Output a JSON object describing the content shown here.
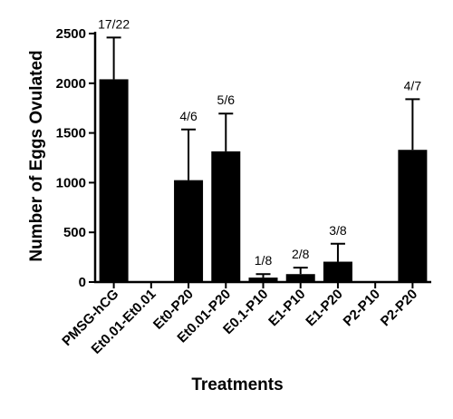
{
  "chart_data": {
    "type": "bar",
    "title": "",
    "xlabel": "Treatments",
    "ylabel": "Number of Eggs Ovulated",
    "ylim": [
      0,
      2500
    ],
    "yticks": [
      0,
      500,
      1000,
      1500,
      2000,
      2500
    ],
    "grid": false,
    "categories": [
      "PMSG-hCG",
      "Et0.01-Et0.01",
      "Et0-P20",
      "Et0.01-P20",
      "E0.1-P10",
      "E1-P10",
      "E1-P20",
      "P2-P10",
      "P2-P20"
    ],
    "values": [
      2040,
      0,
      1025,
      1315,
      45,
      80,
      205,
      0,
      1330
    ],
    "errors": [
      420,
      0,
      510,
      380,
      35,
      65,
      180,
      0,
      510
    ],
    "annotations": [
      "17/22",
      "",
      "4/6",
      "5/6",
      "1/8",
      "2/8",
      "3/8",
      "",
      "4/7"
    ],
    "bar_color": "#000000"
  }
}
